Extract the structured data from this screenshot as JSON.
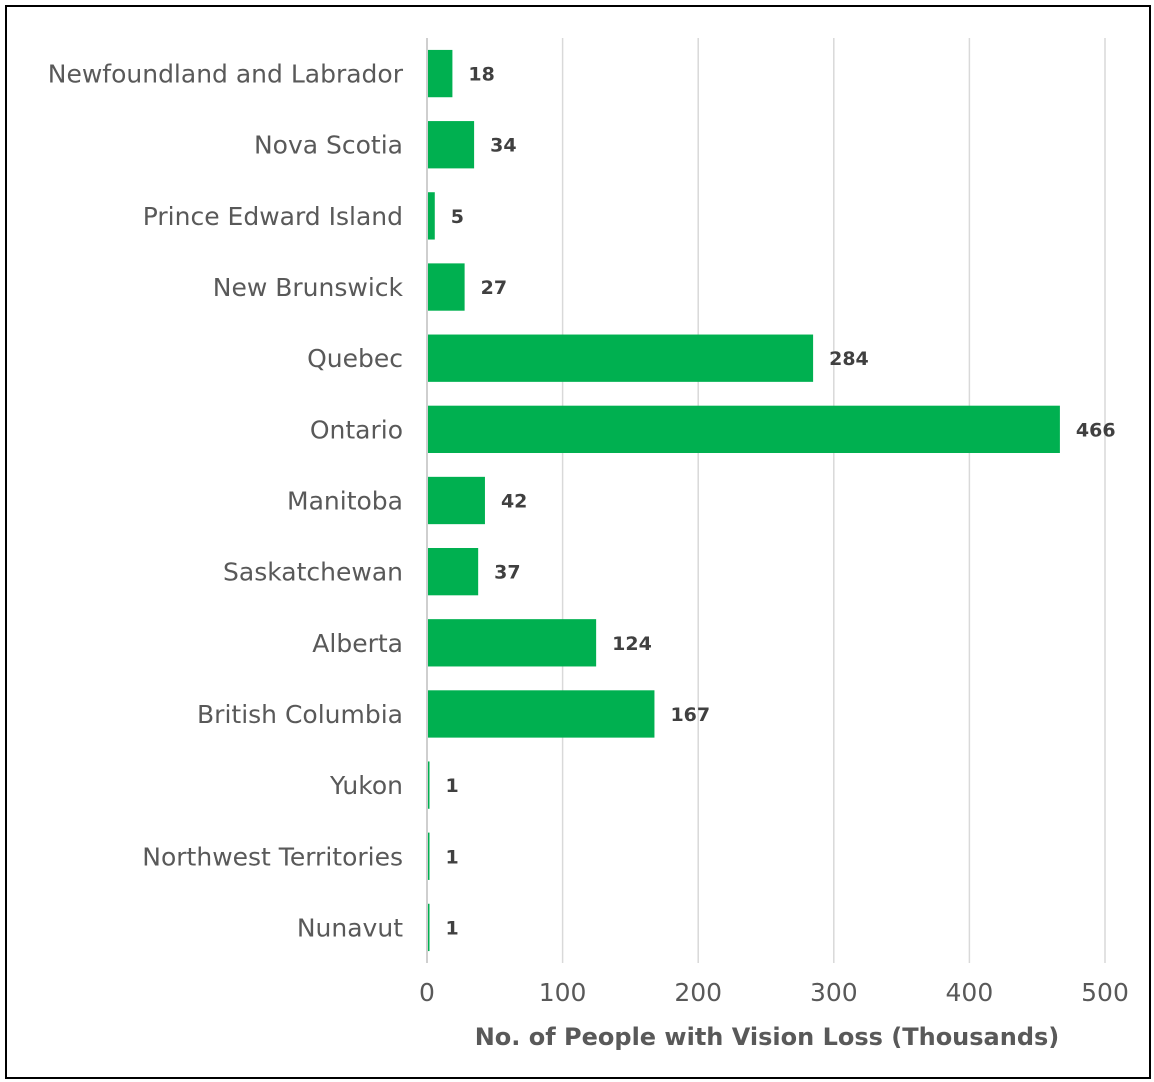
{
  "chart_data": {
    "type": "bar",
    "orientation": "horizontal",
    "categories": [
      "Newfoundland and Labrador",
      "Nova Scotia",
      "Prince Edward Island",
      "New Brunswick",
      "Quebec",
      "Ontario",
      "Manitoba",
      "Saskatchewan",
      "Alberta",
      "British Columbia",
      "Yukon",
      "Northwest Territories",
      "Nunavut"
    ],
    "values": [
      18,
      34,
      5,
      27,
      284,
      466,
      42,
      37,
      124,
      167,
      1,
      1,
      1
    ],
    "data_labels": [
      "18",
      "34",
      "5",
      "27",
      "284",
      "466",
      "42",
      "37",
      "124",
      "167",
      "1",
      "1",
      "1"
    ],
    "xlabel": "No. of People with Vision Loss (Thousands)",
    "xlim": [
      0,
      500
    ],
    "xticks": [
      0,
      100,
      200,
      300,
      400,
      500
    ],
    "xtick_labels": [
      "0",
      "100",
      "200",
      "300",
      "400",
      "500"
    ],
    "grid": true,
    "colors": {
      "bar": "#00B050",
      "grid": "#D9D9D9",
      "axis": "#BFBFBF"
    }
  }
}
